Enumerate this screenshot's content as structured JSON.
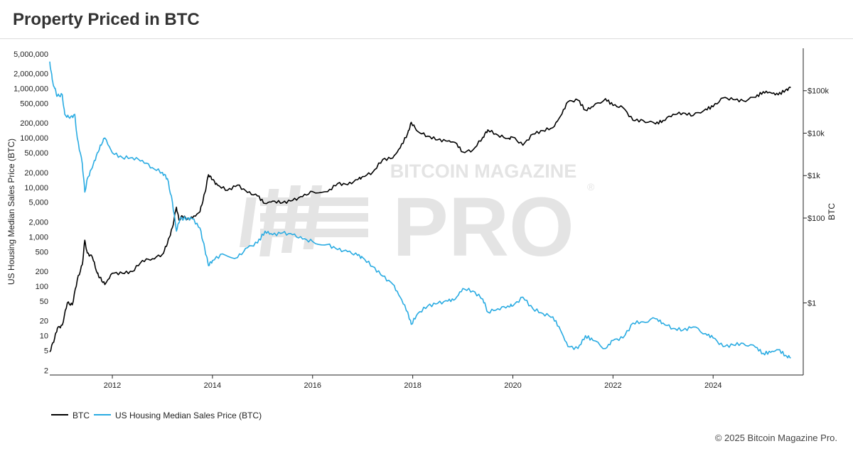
{
  "header": {
    "title": "Property Priced in BTC"
  },
  "footer": {
    "copyright": "© 2025 Bitcoin Magazine Pro."
  },
  "watermark": {
    "top": "BITCOIN MAGAZINE",
    "main": "PRO",
    "mark": "®"
  },
  "colors": {
    "btc": "#000000",
    "housing": "#29abe2",
    "axis": "#222222",
    "watermark": "#e4e4e4"
  },
  "chart_data": {
    "type": "line",
    "title": "Property Priced in BTC",
    "x_range": [
      2010.75,
      2025.8
    ],
    "x_ticks": [
      2012,
      2014,
      2016,
      2018,
      2020,
      2022,
      2024
    ],
    "left_axis": {
      "label": "US Housing Median Sales Price (BTC)",
      "scale": "log",
      "range": [
        1.6,
        6500000
      ],
      "ticks": [
        {
          "v": 2,
          "label": "2"
        },
        {
          "v": 5,
          "label": "5"
        },
        {
          "v": 10,
          "label": "10"
        },
        {
          "v": 20,
          "label": "20"
        },
        {
          "v": 50,
          "label": "50"
        },
        {
          "v": 100,
          "label": "100"
        },
        {
          "v": 200,
          "label": "200"
        },
        {
          "v": 500,
          "label": "500"
        },
        {
          "v": 1000,
          "label": "1,000"
        },
        {
          "v": 2000,
          "label": "2,000"
        },
        {
          "v": 5000,
          "label": "5,000"
        },
        {
          "v": 10000,
          "label": "10,000"
        },
        {
          "v": 20000,
          "label": "20,000"
        },
        {
          "v": 50000,
          "label": "50,000"
        },
        {
          "v": 100000,
          "label": "100,000"
        },
        {
          "v": 200000,
          "label": "200,000"
        },
        {
          "v": 500000,
          "label": "500,000"
        },
        {
          "v": 1000000,
          "label": "1,000,000"
        },
        {
          "v": 2000000,
          "label": "2,000,000"
        },
        {
          "v": 5000000,
          "label": "5,000,000"
        }
      ]
    },
    "right_axis": {
      "label": "BTC",
      "scale": "log",
      "range": [
        0.02,
        1000000
      ],
      "ticks": [
        {
          "v": 1,
          "label": "$1"
        },
        {
          "v": 100,
          "label": "$100"
        },
        {
          "v": 1000,
          "label": "$1k"
        },
        {
          "v": 10000,
          "label": "$10k"
        },
        {
          "v": 100000,
          "label": "$100k"
        }
      ]
    },
    "legend": {
      "position": "bottom-left"
    },
    "series": [
      {
        "name": "BTC",
        "axis": "right",
        "color": "#000000",
        "points": [
          [
            2010.75,
            0.07
          ],
          [
            2010.85,
            0.15
          ],
          [
            2010.9,
            0.25
          ],
          [
            2011.0,
            0.3
          ],
          [
            2011.1,
            1.0
          ],
          [
            2011.2,
            0.9
          ],
          [
            2011.3,
            3.5
          ],
          [
            2011.4,
            8
          ],
          [
            2011.45,
            30
          ],
          [
            2011.5,
            15
          ],
          [
            2011.6,
            12
          ],
          [
            2011.7,
            5
          ],
          [
            2011.75,
            4
          ],
          [
            2011.85,
            2.7
          ],
          [
            2012.0,
            5
          ],
          [
            2012.2,
            5
          ],
          [
            2012.4,
            5.5
          ],
          [
            2012.6,
            10
          ],
          [
            2012.8,
            11
          ],
          [
            2013.0,
            14
          ],
          [
            2013.1,
            25
          ],
          [
            2013.2,
            60
          ],
          [
            2013.28,
            180
          ],
          [
            2013.33,
            90
          ],
          [
            2013.4,
            110
          ],
          [
            2013.5,
            95
          ],
          [
            2013.6,
            100
          ],
          [
            2013.75,
            140
          ],
          [
            2013.85,
            400
          ],
          [
            2013.92,
            1050
          ],
          [
            2014.0,
            800
          ],
          [
            2014.1,
            600
          ],
          [
            2014.3,
            450
          ],
          [
            2014.5,
            600
          ],
          [
            2014.7,
            400
          ],
          [
            2014.9,
            330
          ],
          [
            2015.05,
            220
          ],
          [
            2015.2,
            250
          ],
          [
            2015.4,
            230
          ],
          [
            2015.6,
            260
          ],
          [
            2015.8,
            320
          ],
          [
            2016.0,
            420
          ],
          [
            2016.3,
            420
          ],
          [
            2016.5,
            650
          ],
          [
            2016.7,
            610
          ],
          [
            2016.9,
            800
          ],
          [
            2017.0,
            950
          ],
          [
            2017.2,
            1200
          ],
          [
            2017.4,
            2400
          ],
          [
            2017.6,
            2600
          ],
          [
            2017.75,
            4500
          ],
          [
            2017.9,
            10000
          ],
          [
            2017.97,
            18000
          ],
          [
            2018.1,
            11000
          ],
          [
            2018.3,
            8500
          ],
          [
            2018.5,
            7000
          ],
          [
            2018.7,
            6500
          ],
          [
            2018.85,
            6000
          ],
          [
            2019.0,
            3600
          ],
          [
            2019.2,
            4000
          ],
          [
            2019.4,
            8000
          ],
          [
            2019.5,
            12000
          ],
          [
            2019.7,
            9000
          ],
          [
            2019.9,
            7500
          ],
          [
            2020.0,
            8000
          ],
          [
            2020.2,
            5200
          ],
          [
            2020.4,
            9500
          ],
          [
            2020.6,
            11500
          ],
          [
            2020.8,
            13500
          ],
          [
            2020.95,
            25000
          ],
          [
            2021.1,
            55000
          ],
          [
            2021.3,
            60000
          ],
          [
            2021.45,
            35000
          ],
          [
            2021.6,
            42000
          ],
          [
            2021.85,
            65000
          ],
          [
            2022.0,
            45000
          ],
          [
            2022.2,
            40000
          ],
          [
            2022.4,
            20000
          ],
          [
            2022.6,
            20000
          ],
          [
            2022.85,
            16500
          ],
          [
            2023.0,
            20000
          ],
          [
            2023.2,
            28000
          ],
          [
            2023.4,
            30000
          ],
          [
            2023.6,
            26000
          ],
          [
            2023.85,
            37000
          ],
          [
            2024.0,
            42000
          ],
          [
            2024.2,
            68000
          ],
          [
            2024.4,
            62000
          ],
          [
            2024.6,
            58000
          ],
          [
            2024.85,
            70000
          ],
          [
            2025.0,
            95000
          ],
          [
            2025.15,
            90000
          ],
          [
            2025.3,
            80000
          ],
          [
            2025.45,
            105000
          ],
          [
            2025.55,
            118000
          ]
        ]
      },
      {
        "name": "US Housing Median Sales Price (BTC)",
        "axis": "left",
        "color": "#29abe2",
        "points": [
          [
            2010.75,
            3500000
          ],
          [
            2010.8,
            1500000
          ],
          [
            2010.85,
            1000000
          ],
          [
            2010.9,
            700000
          ],
          [
            2011.0,
            750000
          ],
          [
            2011.05,
            300000
          ],
          [
            2011.15,
            250000
          ],
          [
            2011.25,
            300000
          ],
          [
            2011.3,
            100000
          ],
          [
            2011.4,
            30000
          ],
          [
            2011.45,
            8000
          ],
          [
            2011.5,
            15000
          ],
          [
            2011.6,
            25000
          ],
          [
            2011.7,
            50000
          ],
          [
            2011.8,
            80000
          ],
          [
            2011.85,
            100000
          ],
          [
            2012.0,
            50000
          ],
          [
            2012.2,
            40000
          ],
          [
            2012.4,
            40000
          ],
          [
            2012.6,
            35000
          ],
          [
            2012.8,
            25000
          ],
          [
            2013.0,
            20000
          ],
          [
            2013.1,
            15000
          ],
          [
            2013.2,
            5000
          ],
          [
            2013.28,
            1300
          ],
          [
            2013.35,
            2300
          ],
          [
            2013.5,
            2400
          ],
          [
            2013.6,
            2300
          ],
          [
            2013.75,
            1500
          ],
          [
            2013.85,
            550
          ],
          [
            2013.92,
            260
          ],
          [
            2014.0,
            330
          ],
          [
            2014.2,
            450
          ],
          [
            2014.5,
            380
          ],
          [
            2014.7,
            600
          ],
          [
            2014.9,
            750
          ],
          [
            2015.05,
            1300
          ],
          [
            2015.2,
            1100
          ],
          [
            2015.4,
            1200
          ],
          [
            2015.6,
            1100
          ],
          [
            2015.8,
            900
          ],
          [
            2016.0,
            800
          ],
          [
            2016.3,
            700
          ],
          [
            2016.5,
            550
          ],
          [
            2016.7,
            500
          ],
          [
            2016.9,
            420
          ],
          [
            2017.0,
            380
          ],
          [
            2017.2,
            250
          ],
          [
            2017.4,
            160
          ],
          [
            2017.6,
            110
          ],
          [
            2017.75,
            60
          ],
          [
            2017.9,
            30
          ],
          [
            2017.97,
            17
          ],
          [
            2018.1,
            28
          ],
          [
            2018.3,
            40
          ],
          [
            2018.5,
            45
          ],
          [
            2018.7,
            50
          ],
          [
            2018.85,
            55
          ],
          [
            2019.0,
            90
          ],
          [
            2019.2,
            80
          ],
          [
            2019.4,
            55
          ],
          [
            2019.5,
            30
          ],
          [
            2019.7,
            35
          ],
          [
            2019.9,
            40
          ],
          [
            2020.0,
            40
          ],
          [
            2020.2,
            60
          ],
          [
            2020.4,
            35
          ],
          [
            2020.6,
            28
          ],
          [
            2020.8,
            24
          ],
          [
            2020.95,
            13
          ],
          [
            2021.1,
            6
          ],
          [
            2021.3,
            5.5
          ],
          [
            2021.45,
            10
          ],
          [
            2021.6,
            8
          ],
          [
            2021.85,
            5.5
          ],
          [
            2022.0,
            8
          ],
          [
            2022.2,
            9
          ],
          [
            2022.4,
            18
          ],
          [
            2022.6,
            19
          ],
          [
            2022.85,
            22
          ],
          [
            2023.0,
            18
          ],
          [
            2023.2,
            14
          ],
          [
            2023.4,
            13
          ],
          [
            2023.6,
            15
          ],
          [
            2023.85,
            11
          ],
          [
            2024.0,
            9
          ],
          [
            2024.2,
            6
          ],
          [
            2024.4,
            6.5
          ],
          [
            2024.6,
            7
          ],
          [
            2024.85,
            5.8
          ],
          [
            2025.0,
            4.4
          ],
          [
            2025.15,
            4.6
          ],
          [
            2025.3,
            5.2
          ],
          [
            2025.45,
            4.0
          ],
          [
            2025.55,
            3.5
          ]
        ]
      }
    ]
  }
}
